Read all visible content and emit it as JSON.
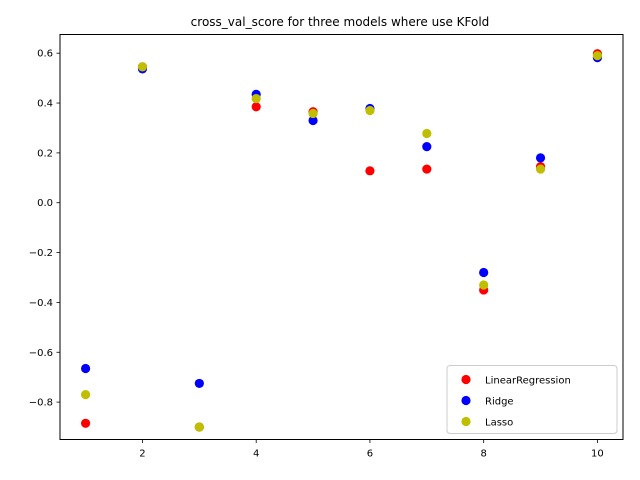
{
  "chart_data": {
    "type": "scatter",
    "title": "cross_val_score for three models where use KFold",
    "xlabel": "",
    "ylabel": "",
    "xlim": [
      0.55,
      10.45
    ],
    "ylim": [
      -0.95,
      0.675
    ],
    "xticks": [
      2,
      4,
      6,
      8,
      10
    ],
    "yticks": [
      -0.8,
      -0.6,
      -0.4,
      -0.2,
      0.0,
      0.2,
      0.4,
      0.6
    ],
    "xtick_labels": [
      "2",
      "4",
      "6",
      "8",
      "10"
    ],
    "ytick_labels": [
      "−0.8",
      "−0.6",
      "−0.4",
      "−0.2",
      "0.0",
      "0.2",
      "0.4",
      "0.6"
    ],
    "grid": false,
    "legend_position": "lower-right",
    "x": [
      1,
      2,
      3,
      4,
      5,
      6,
      7,
      8,
      9,
      10
    ],
    "series": [
      {
        "name": "LinearRegression",
        "color": "#ff0000",
        "values": [
          -0.885,
          0.545,
          -0.9,
          0.385,
          0.365,
          0.128,
          0.135,
          -0.35,
          0.145,
          0.598
        ]
      },
      {
        "name": "Ridge",
        "color": "#0000ff",
        "values": [
          -0.665,
          0.537,
          -0.725,
          0.435,
          0.33,
          0.378,
          0.225,
          -0.28,
          0.18,
          0.582
        ]
      },
      {
        "name": "Lasso",
        "color": "#bfbf00",
        "values": [
          -0.77,
          0.545,
          -0.9,
          0.418,
          0.358,
          0.37,
          0.278,
          -0.33,
          0.135,
          0.59
        ]
      }
    ]
  }
}
